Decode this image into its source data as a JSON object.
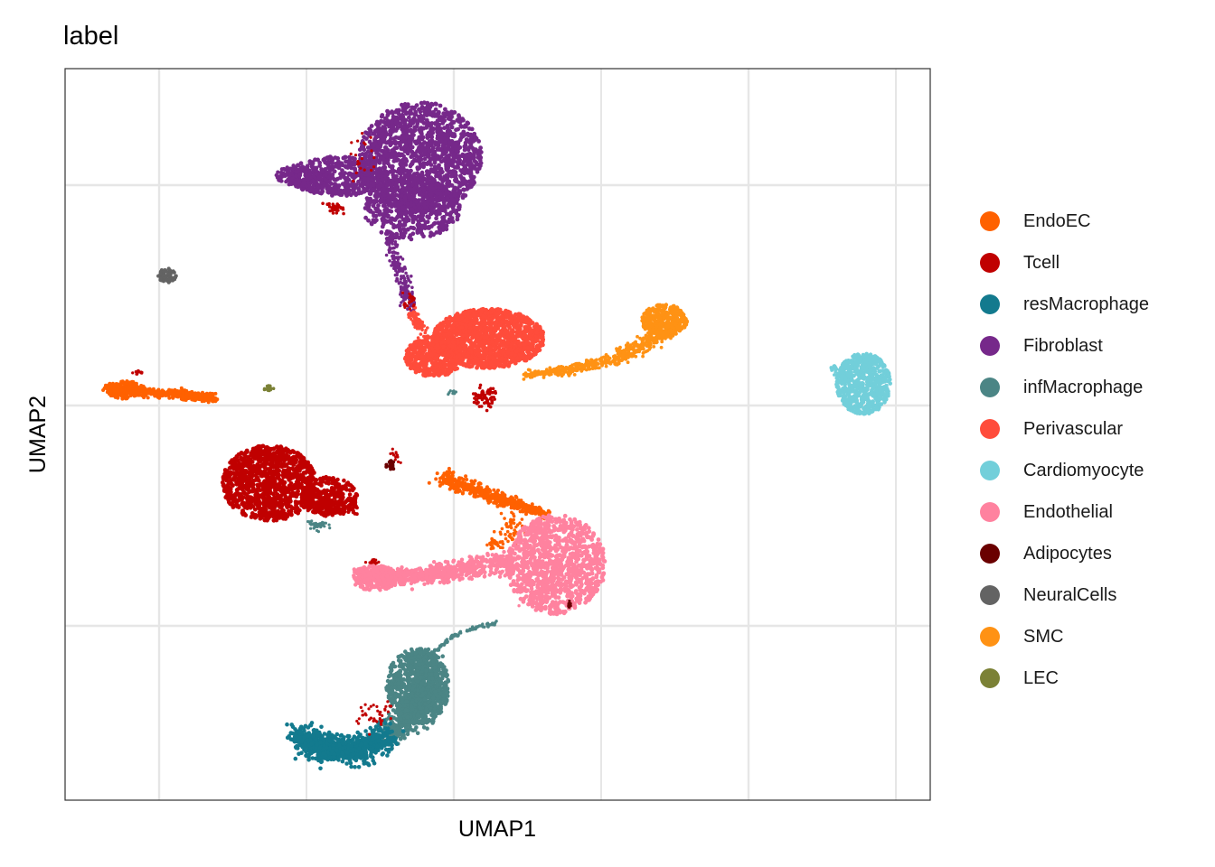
{
  "chart_data": {
    "type": "scatter",
    "title": "label",
    "xlabel": "UMAP1",
    "ylabel": "UMAP2",
    "grid": true,
    "legend_position": "right",
    "series": [
      {
        "name": "EndoEC",
        "color": "#FF6100"
      },
      {
        "name": "Tcell",
        "color": "#C00000"
      },
      {
        "name": "resMacrophage",
        "color": "#137A8E"
      },
      {
        "name": "Fibroblast",
        "color": "#76288A"
      },
      {
        "name": "infMacrophage",
        "color": "#4B8585"
      },
      {
        "name": "Perivascular",
        "color": "#FF4C3B"
      },
      {
        "name": "Cardiomyocyte",
        "color": "#72CFDA"
      },
      {
        "name": "Endothelial",
        "color": "#FF829F"
      },
      {
        "name": "Adipocytes",
        "color": "#6A0000"
      },
      {
        "name": "NeuralCells",
        "color": "#636363"
      },
      {
        "name": "SMC",
        "color": "#FF9214"
      },
      {
        "name": "LEC",
        "color": "#7B8136"
      }
    ]
  }
}
